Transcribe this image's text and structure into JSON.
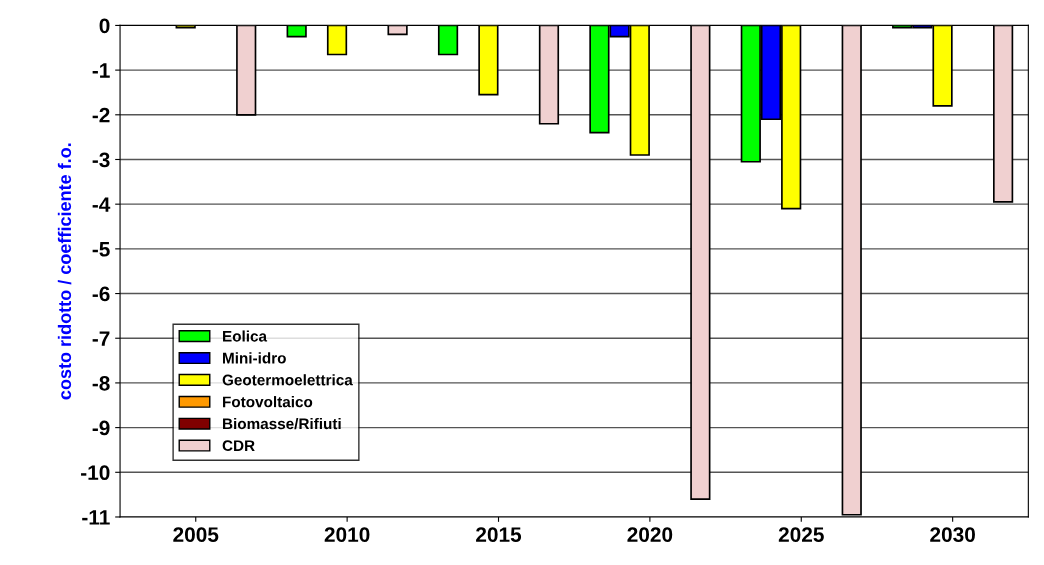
{
  "chart_data": {
    "type": "bar",
    "ylabel": "costo ridotto / coefficiente f.o.",
    "categories": [
      "2005",
      "2010",
      "2015",
      "2020",
      "2025",
      "2030"
    ],
    "series": [
      {
        "name": "Eolica",
        "color": "#00ff00",
        "values": [
          0,
          -0.25,
          -0.65,
          -2.4,
          -3.05,
          -0.05
        ]
      },
      {
        "name": "Mini-idro",
        "color": "#0000ff",
        "values": [
          0,
          0,
          0,
          -0.25,
          -2.1,
          -0.05
        ]
      },
      {
        "name": "Geotermoelettrica",
        "color": "#ffff00",
        "values": [
          -0.05,
          -0.65,
          -1.55,
          -2.9,
          -4.1,
          -1.8
        ]
      },
      {
        "name": "Fotovoltaico",
        "color": "#ff9900",
        "values": [
          0,
          0,
          0,
          0,
          0,
          0
        ]
      },
      {
        "name": "Biomasse/Rifiuti",
        "color": "#800000",
        "values": [
          0,
          0,
          0,
          0,
          0,
          0
        ]
      },
      {
        "name": "CDR",
        "color": "#f0d0d0",
        "values": [
          -2.0,
          -0.2,
          -2.2,
          -10.6,
          -10.95,
          -3.95
        ]
      }
    ],
    "ylim": [
      -11,
      0
    ],
    "yticks": [
      0,
      -1,
      -2,
      -3,
      -4,
      -5,
      -6,
      -7,
      -8,
      -9,
      -10,
      -11
    ],
    "grid": "y",
    "legend": "bottom left"
  }
}
